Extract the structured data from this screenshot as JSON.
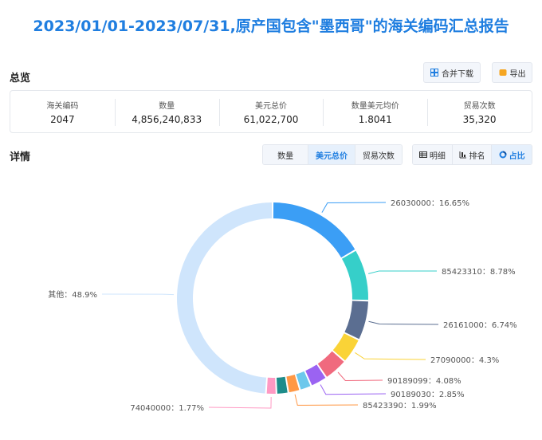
{
  "page_title": "2023/01/01-2023/07/31,原产国包含\"墨西哥\"的海关编码汇总报告",
  "overview": {
    "title": "总览",
    "merge_download": "合并下载",
    "export": "导出",
    "stats": [
      {
        "label": "海关编码",
        "value": "2047"
      },
      {
        "label": "数量",
        "value": "4,856,240,833"
      },
      {
        "label": "美元总价",
        "value": "61,022,700"
      },
      {
        "label": "数量美元均价",
        "value": "1.8041"
      },
      {
        "label": "贸易次数",
        "value": "35,320"
      }
    ]
  },
  "details": {
    "title": "详情",
    "metric_tabs": [
      "数量",
      "美元总价",
      "贸易次数"
    ],
    "active_metric": "美元总价",
    "view_tabs": [
      "明细",
      "排名",
      "占比"
    ],
    "active_view": "占比"
  },
  "colors": {
    "accent": "#1f7ee0",
    "series": [
      "#3b9ef5",
      "#36cfc9",
      "#5b6e91",
      "#fad337",
      "#f06a7e",
      "#9b63f2",
      "#6dc8ec",
      "#ff9845",
      "#1e8c8a",
      "#ff99c3",
      "#cfe5fc"
    ]
  },
  "chart_data": {
    "type": "pie",
    "variant": "donut",
    "slices": [
      {
        "name": "26030000",
        "value": 16.65,
        "label": "26030000：16.65%"
      },
      {
        "name": "85423310",
        "value": 8.78,
        "label": "85423310：8.78%"
      },
      {
        "name": "26161000",
        "value": 6.74,
        "label": "26161000：6.74%"
      },
      {
        "name": "27090000",
        "value": 4.3,
        "label": "27090000：4.3%"
      },
      {
        "name": "90189099",
        "value": 4.08,
        "label": "90189099：4.08%"
      },
      {
        "name": "90189030",
        "value": 2.85,
        "label": "90189030：2.85%"
      },
      {
        "name": "",
        "value": 1.99,
        "label": ""
      },
      {
        "name": "85423390",
        "value": 1.99,
        "label": "85423390：1.99%"
      },
      {
        "name": "",
        "value": 1.99,
        "label": ""
      },
      {
        "name": "74040000",
        "value": 1.77,
        "label": "74040000：1.77%"
      },
      {
        "name": "其他",
        "value": 48.9,
        "label": "其他：48.9%"
      }
    ]
  }
}
